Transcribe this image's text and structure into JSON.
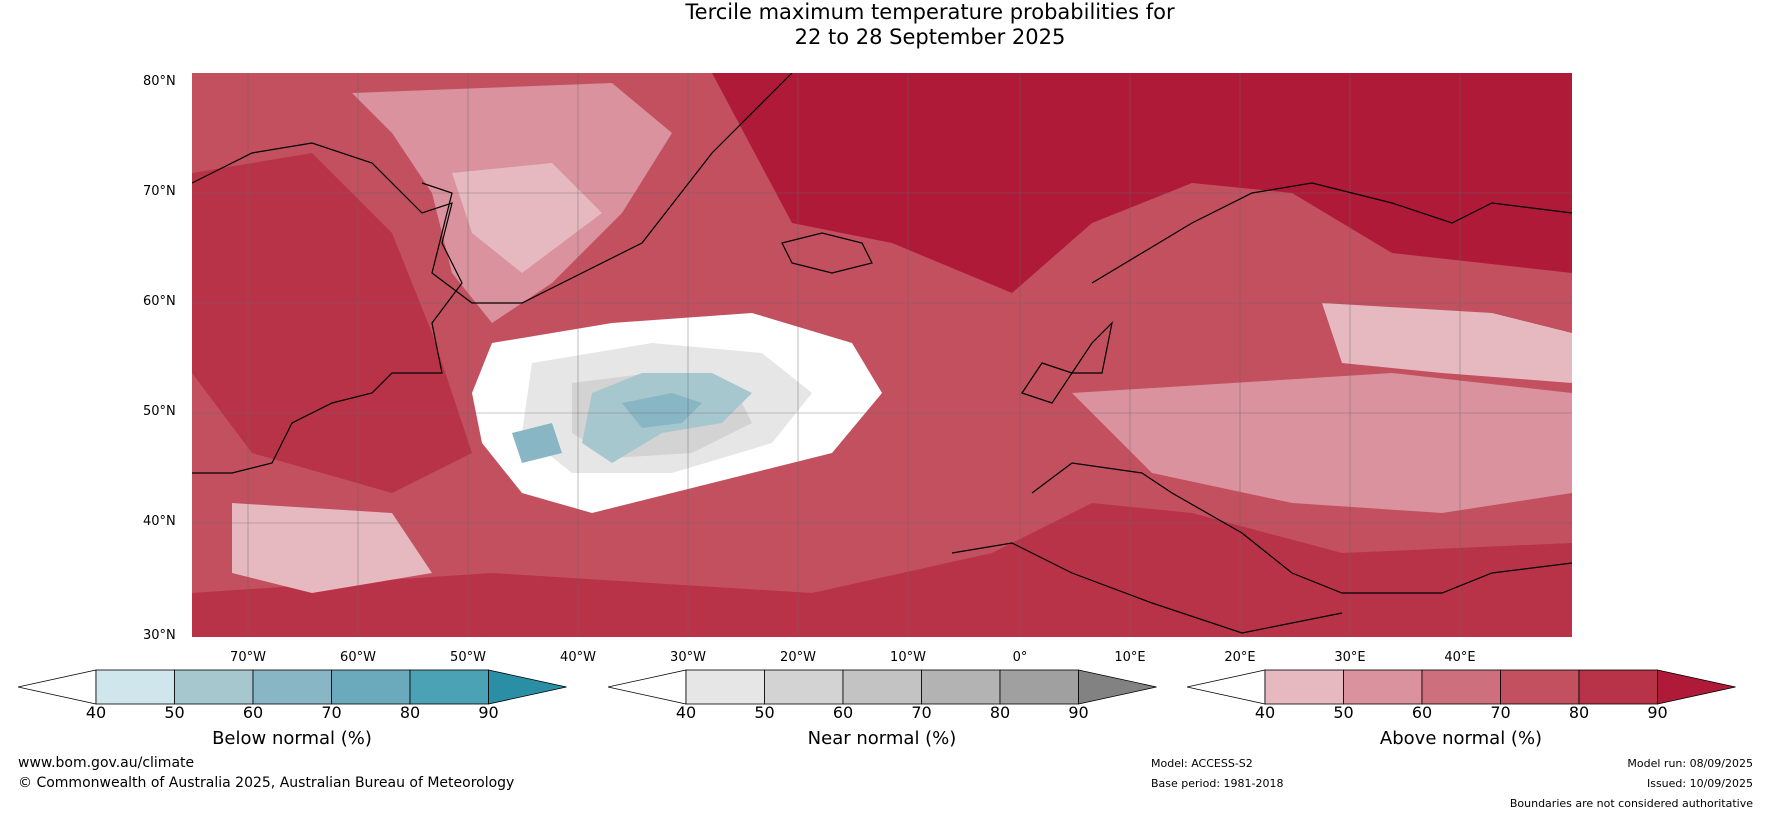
{
  "title": {
    "line1": "Tercile maximum temperature probabilities for",
    "line2": "22 to 28 September 2025"
  },
  "map": {
    "lat_labels": [
      "80°N",
      "70°N",
      "60°N",
      "50°N",
      "40°N",
      "30°N"
    ],
    "lon_labels": [
      "70°W",
      "60°W",
      "50°W",
      "40°W",
      "30°W",
      "20°W",
      "10°W",
      "0°",
      "10°E",
      "20°E",
      "30°E",
      "40°E"
    ]
  },
  "colorbars": [
    {
      "label": "Below normal (%)",
      "ticks": [
        "40",
        "50",
        "60",
        "70",
        "80",
        "90"
      ],
      "colors": [
        "#ffffff",
        "#cfe6ec",
        "#a7c7cf",
        "#88b6c4",
        "#6aaabc",
        "#4aa2b4",
        "#2a8ea4"
      ]
    },
    {
      "label": "Near normal (%)",
      "ticks": [
        "40",
        "50",
        "60",
        "70",
        "80",
        "90"
      ],
      "colors": [
        "#ffffff",
        "#e6e6e6",
        "#d3d3d3",
        "#c3c3c3",
        "#b3b3b3",
        "#a0a0a0",
        "#828282"
      ]
    },
    {
      "label": "Above normal (%)",
      "ticks": [
        "40",
        "50",
        "60",
        "70",
        "80",
        "90"
      ],
      "colors": [
        "#ffffff",
        "#e6b9c1",
        "#d9929e",
        "#cd6f7d",
        "#c2505f",
        "#b93348",
        "#b01a39"
      ]
    }
  ],
  "footer": {
    "website": "www.bom.gov.au/climate",
    "copyright": "© Commonwealth of Australia 2025, Australian Bureau of Meteorology",
    "model": "Model: ACCESS-S2",
    "base_period": "Base period: 1981-2018",
    "model_run": "Model run: 08/09/2025",
    "issued": "Issued: 10/09/2025",
    "disclaimer": "Boundaries are not considered authoritative"
  }
}
